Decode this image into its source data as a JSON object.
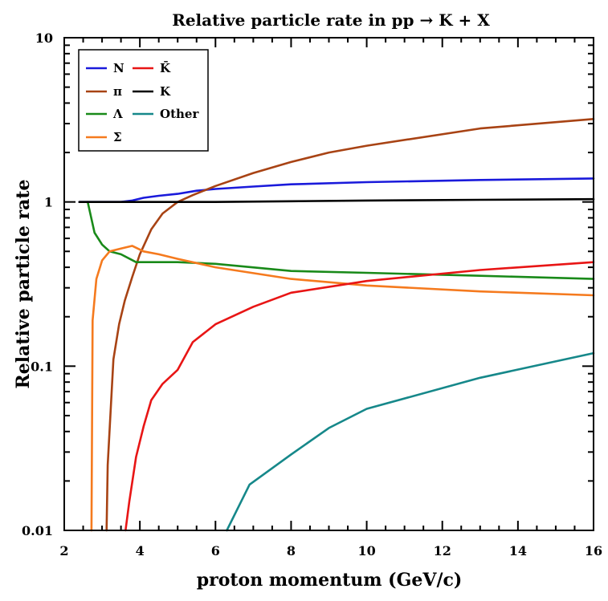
{
  "chart_data": {
    "type": "line",
    "title": "Relative particle rate in pp → K + X",
    "xlabel": "proton momentum (GeV/c)",
    "ylabel": "Relative particle rate",
    "xlim": [
      2,
      16
    ],
    "ylim": [
      0.01,
      10
    ],
    "yscale": "log",
    "x_ticks": [
      2,
      4,
      6,
      8,
      10,
      12,
      14,
      16
    ],
    "x_tick_labels": [
      "2",
      "4",
      "6",
      "8",
      "10",
      "12",
      "14",
      "16"
    ],
    "y_ticks": [
      0.01,
      0.1,
      1,
      10
    ],
    "y_tick_labels": [
      "0.01",
      "0.1",
      "1",
      "10"
    ],
    "grid": false,
    "legend_position": "top-left",
    "series": [
      {
        "name": "N",
        "color": "#1a1adb",
        "x": [
          2.4,
          3.5,
          3.8,
          4.1,
          4.5,
          5.0,
          5.5,
          6.0,
          7.0,
          8.0,
          10.0,
          13.0,
          16.0
        ],
        "y": [
          1.0,
          1.0,
          1.02,
          1.06,
          1.09,
          1.12,
          1.17,
          1.2,
          1.24,
          1.28,
          1.32,
          1.36,
          1.39
        ]
      },
      {
        "name": "π",
        "color": "#a84314",
        "x": [
          3.12,
          3.15,
          3.3,
          3.45,
          3.6,
          3.8,
          4.0,
          4.3,
          4.6,
          5.0,
          5.4,
          6.0,
          7.0,
          8.0,
          9.0,
          10.0,
          13.0,
          16.0
        ],
        "y": [
          0.01,
          0.025,
          0.11,
          0.18,
          0.25,
          0.35,
          0.48,
          0.68,
          0.85,
          1.0,
          1.1,
          1.25,
          1.5,
          1.75,
          2.0,
          2.2,
          2.8,
          3.2
        ]
      },
      {
        "name": "Λ",
        "color": "#198a19",
        "x": [
          2.62,
          2.8,
          3.0,
          3.2,
          3.5,
          3.9,
          4.2,
          4.6,
          5.0,
          6.0,
          8.0,
          10.0,
          13.0,
          16.0
        ],
        "y": [
          1.0,
          0.65,
          0.55,
          0.5,
          0.48,
          0.43,
          0.43,
          0.43,
          0.43,
          0.42,
          0.38,
          0.37,
          0.355,
          0.34
        ]
      },
      {
        "name": "Σ",
        "color": "#f57a1e",
        "x": [
          2.72,
          2.75,
          2.85,
          3.0,
          3.2,
          3.5,
          3.8,
          4.1,
          4.5,
          5.0,
          6.0,
          8.0,
          10.0,
          13.0,
          16.0
        ],
        "y": [
          0.01,
          0.19,
          0.34,
          0.44,
          0.5,
          0.52,
          0.54,
          0.5,
          0.48,
          0.45,
          0.4,
          0.34,
          0.31,
          0.285,
          0.27
        ]
      },
      {
        "name": "K̄",
        "color": "#e81515",
        "x": [
          3.62,
          3.72,
          3.9,
          4.1,
          4.3,
          4.6,
          5.0,
          5.4,
          6.0,
          7.0,
          8.0,
          10.0,
          13.0,
          16.0
        ],
        "y": [
          0.01,
          0.015,
          0.028,
          0.043,
          0.062,
          0.078,
          0.095,
          0.14,
          0.18,
          0.23,
          0.28,
          0.33,
          0.385,
          0.43
        ]
      },
      {
        "name": "K",
        "color": "#000000",
        "x": [
          2.4,
          4.0,
          6.0,
          8.0,
          10.0,
          13.0,
          16.0
        ],
        "y": [
          1.0,
          1.0,
          1.0,
          1.01,
          1.02,
          1.03,
          1.04
        ]
      },
      {
        "name": "Other",
        "color": "#16888a",
        "x": [
          6.3,
          6.9,
          8.0,
          9.0,
          10.0,
          13.0,
          16.0
        ],
        "y": [
          0.01,
          0.019,
          0.029,
          0.042,
          0.055,
          0.085,
          0.12
        ]
      }
    ],
    "legend": [
      {
        "label": "N",
        "color": "#1a1adb"
      },
      {
        "label": "K̄",
        "color": "#e81515"
      },
      {
        "label": "π",
        "color": "#a84314"
      },
      {
        "label": "K",
        "color": "#000000"
      },
      {
        "label": "Λ",
        "color": "#198a19"
      },
      {
        "label": "Other",
        "color": "#16888a"
      },
      {
        "label": "Σ",
        "color": "#f57a1e"
      }
    ]
  }
}
